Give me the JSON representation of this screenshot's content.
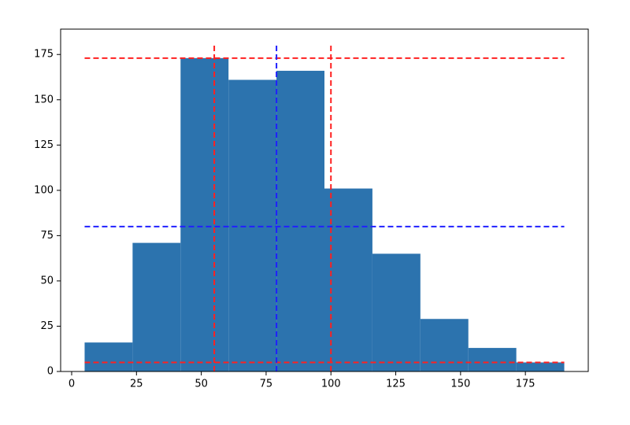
{
  "chart_data": {
    "type": "histogram",
    "bins": [
      5,
      23.5,
      42,
      60.5,
      79,
      97.5,
      116,
      134.5,
      153,
      171.5,
      190
    ],
    "counts": [
      16,
      71,
      173,
      161,
      166,
      101,
      65,
      29,
      13,
      5
    ],
    "color": "#2c73ae",
    "xlim": [
      -4.25,
      199.25
    ],
    "ylim": [
      0,
      189
    ],
    "xticks": [
      0,
      25,
      50,
      75,
      100,
      125,
      150,
      175
    ],
    "yticks": [
      0,
      25,
      50,
      75,
      100,
      125,
      150,
      175
    ],
    "hlines": [
      {
        "y": 173,
        "xmin": 5,
        "xmax": 190,
        "color": "#ff2020"
      },
      {
        "y": 5,
        "xmin": 5,
        "xmax": 190,
        "color": "#ff2020"
      },
      {
        "y": 80,
        "xmin": 5,
        "xmax": 190,
        "color": "#2020ff"
      }
    ],
    "vlines": [
      {
        "x": 55,
        "ymin": 0,
        "ymax": 180,
        "color": "#ff2020"
      },
      {
        "x": 100,
        "ymin": 0,
        "ymax": 180,
        "color": "#ff2020"
      },
      {
        "x": 79,
        "ymin": 0,
        "ymax": 180,
        "color": "#2020ff"
      }
    ]
  }
}
